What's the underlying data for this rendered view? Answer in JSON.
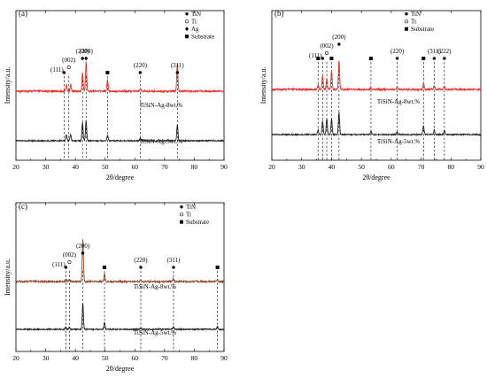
{
  "chart_data": [
    {
      "type": "line",
      "panel_label": "(a)",
      "xlabel": "2θ/degree",
      "ylabel": "Intensity/a.u.",
      "xlim": [
        20,
        90
      ],
      "xticks": [
        "20",
        "30",
        "40",
        "50",
        "60",
        "70",
        "80",
        "90"
      ],
      "legend_position": "top-right",
      "legend": [
        {
          "symbol": "●",
          "label": "TiN"
        },
        {
          "symbol": "○",
          "label": "Ti"
        },
        {
          "symbol": "♦",
          "label": "Ag"
        },
        {
          "symbol": "■",
          "label": "Substrate"
        }
      ],
      "series": [
        {
          "name": "TiSiN-Ag-8wt.%",
          "color": "#e8302a",
          "peaks": [
            {
              "x": 37.0,
              "h": 0.12
            },
            {
              "x": 38.4,
              "h": 0.12
            },
            {
              "x": 42.4,
              "h": 0.35
            },
            {
              "x": 43.6,
              "h": 0.55
            },
            {
              "x": 50.8,
              "h": 0.22
            },
            {
              "x": 61.8,
              "h": 0.05
            },
            {
              "x": 74.3,
              "h": 0.5
            }
          ]
        },
        {
          "name": "TiSiN-Ag-5wt.%",
          "color": "#222222",
          "peaks": [
            {
              "x": 37.0,
              "h": 0.12
            },
            {
              "x": 38.4,
              "h": 0.12
            },
            {
              "x": 42.4,
              "h": 0.35
            },
            {
              "x": 43.6,
              "h": 0.38
            },
            {
              "x": 50.8,
              "h": 0.1
            },
            {
              "x": 61.8,
              "h": 0.05
            },
            {
              "x": 74.3,
              "h": 0.3
            }
          ]
        }
      ],
      "annotations": [
        {
          "text": "(111)",
          "x": 36.2,
          "marker": "●"
        },
        {
          "text": "(002)",
          "x": 37.8,
          "marker": "○"
        },
        {
          "text": "(200)",
          "x": 42.4,
          "marker": "●"
        },
        {
          "text": "(200)",
          "x": 43.6,
          "marker": "♦"
        },
        {
          "text": "",
          "x": 50.8,
          "marker": "■"
        },
        {
          "text": "(220)",
          "x": 61.8,
          "marker": "●"
        },
        {
          "text": "(311)",
          "x": 74.3,
          "marker": "●"
        }
      ]
    },
    {
      "type": "line",
      "panel_label": "(b)",
      "xlabel": "2θ/degree",
      "ylabel": "Intensity/a.u.",
      "xlim": [
        20,
        90
      ],
      "xticks": [
        "20",
        "30",
        "40",
        "50",
        "60",
        "70",
        "80",
        "90"
      ],
      "legend_position": "top-right",
      "legend": [
        {
          "symbol": "●",
          "label": "TiN"
        },
        {
          "symbol": "○",
          "label": "Ti"
        },
        {
          "symbol": "■",
          "label": "Substrate"
        }
      ],
      "series": [
        {
          "name": "TiSiN-Ag-8wt.%",
          "color": "#e8302a",
          "peaks": [
            {
              "x": 35.5,
              "h": 0.08
            },
            {
              "x": 37.0,
              "h": 0.25
            },
            {
              "x": 38.4,
              "h": 0.2
            },
            {
              "x": 40.0,
              "h": 0.35
            },
            {
              "x": 42.5,
              "h": 0.55
            },
            {
              "x": 53.2,
              "h": 0.04
            },
            {
              "x": 62.0,
              "h": 0.05
            },
            {
              "x": 70.8,
              "h": 0.12
            },
            {
              "x": 74.4,
              "h": 0.08
            },
            {
              "x": 77.8,
              "h": 0.06
            }
          ]
        },
        {
          "name": "TiSiN-Ag-5wt.%",
          "color": "#222222",
          "peaks": [
            {
              "x": 35.5,
              "h": 0.08
            },
            {
              "x": 37.0,
              "h": 0.25
            },
            {
              "x": 38.4,
              "h": 0.3
            },
            {
              "x": 40.0,
              "h": 0.3
            },
            {
              "x": 42.5,
              "h": 0.42
            },
            {
              "x": 53.2,
              "h": 0.06
            },
            {
              "x": 62.0,
              "h": 0.05
            },
            {
              "x": 70.8,
              "h": 0.16
            },
            {
              "x": 74.4,
              "h": 0.08
            },
            {
              "x": 77.8,
              "h": 0.08
            }
          ]
        }
      ],
      "annotations": [
        {
          "text": "",
          "x": 35.5,
          "marker": "■"
        },
        {
          "text": "(111)",
          "x": 37.0,
          "marker": "●"
        },
        {
          "text": "(002)",
          "x": 38.4,
          "marker": "○"
        },
        {
          "text": "",
          "x": 40.0,
          "marker": "■"
        },
        {
          "text": "(200)",
          "x": 42.5,
          "marker": "●"
        },
        {
          "text": "",
          "x": 53.2,
          "marker": "■"
        },
        {
          "text": "(220)",
          "x": 62.0,
          "marker": "●"
        },
        {
          "text": "",
          "x": 70.8,
          "marker": "■"
        },
        {
          "text": "(311)",
          "x": 74.4,
          "marker": "●"
        },
        {
          "text": "(222)",
          "x": 77.8,
          "marker": "●"
        }
      ]
    },
    {
      "type": "line",
      "panel_label": "(c)",
      "xlabel": "2θ/degree",
      "ylabel": "Intensity/a.u.",
      "xlim": [
        20,
        90
      ],
      "xticks": [
        "20",
        "30",
        "40",
        "50",
        "60",
        "70",
        "80",
        "90"
      ],
      "legend_position": "top-right",
      "legend": [
        {
          "symbol": "●",
          "label": "TiN"
        },
        {
          "symbol": "○",
          "label": "Ti"
        },
        {
          "symbol": "■",
          "label": "Substrate"
        }
      ],
      "series": [
        {
          "name": "TiSiN-Ag-8wt.%",
          "color": "#8b4a2b",
          "peaks": [
            {
              "x": 36.8,
              "h": 0.04
            },
            {
              "x": 38.0,
              "h": 0.04
            },
            {
              "x": 42.5,
              "h": 0.82
            },
            {
              "x": 49.8,
              "h": 0.15
            },
            {
              "x": 62.0,
              "h": 0.02
            },
            {
              "x": 73.0,
              "h": 0.05
            },
            {
              "x": 87.8,
              "h": 0.04
            }
          ]
        },
        {
          "name": "TiSiN-Ag-5wt.%",
          "color": "#222222",
          "peaks": [
            {
              "x": 36.8,
              "h": 0.04
            },
            {
              "x": 38.0,
              "h": 0.04
            },
            {
              "x": 42.5,
              "h": 0.5
            },
            {
              "x": 49.8,
              "h": 0.13
            },
            {
              "x": 62.0,
              "h": 0.02
            },
            {
              "x": 73.0,
              "h": 0.05
            },
            {
              "x": 87.8,
              "h": 0.05
            }
          ]
        }
      ],
      "annotations": [
        {
          "text": "(111)",
          "x": 36.8,
          "marker": "●"
        },
        {
          "text": "(002)",
          "x": 38.0,
          "marker": "○"
        },
        {
          "text": "(200)",
          "x": 42.5,
          "marker": "●"
        },
        {
          "text": "",
          "x": 49.8,
          "marker": "■"
        },
        {
          "text": "(220)",
          "x": 62.0,
          "marker": "●"
        },
        {
          "text": "(311)",
          "x": 73.0,
          "marker": "●"
        },
        {
          "text": "",
          "x": 87.8,
          "marker": "■"
        }
      ]
    }
  ]
}
